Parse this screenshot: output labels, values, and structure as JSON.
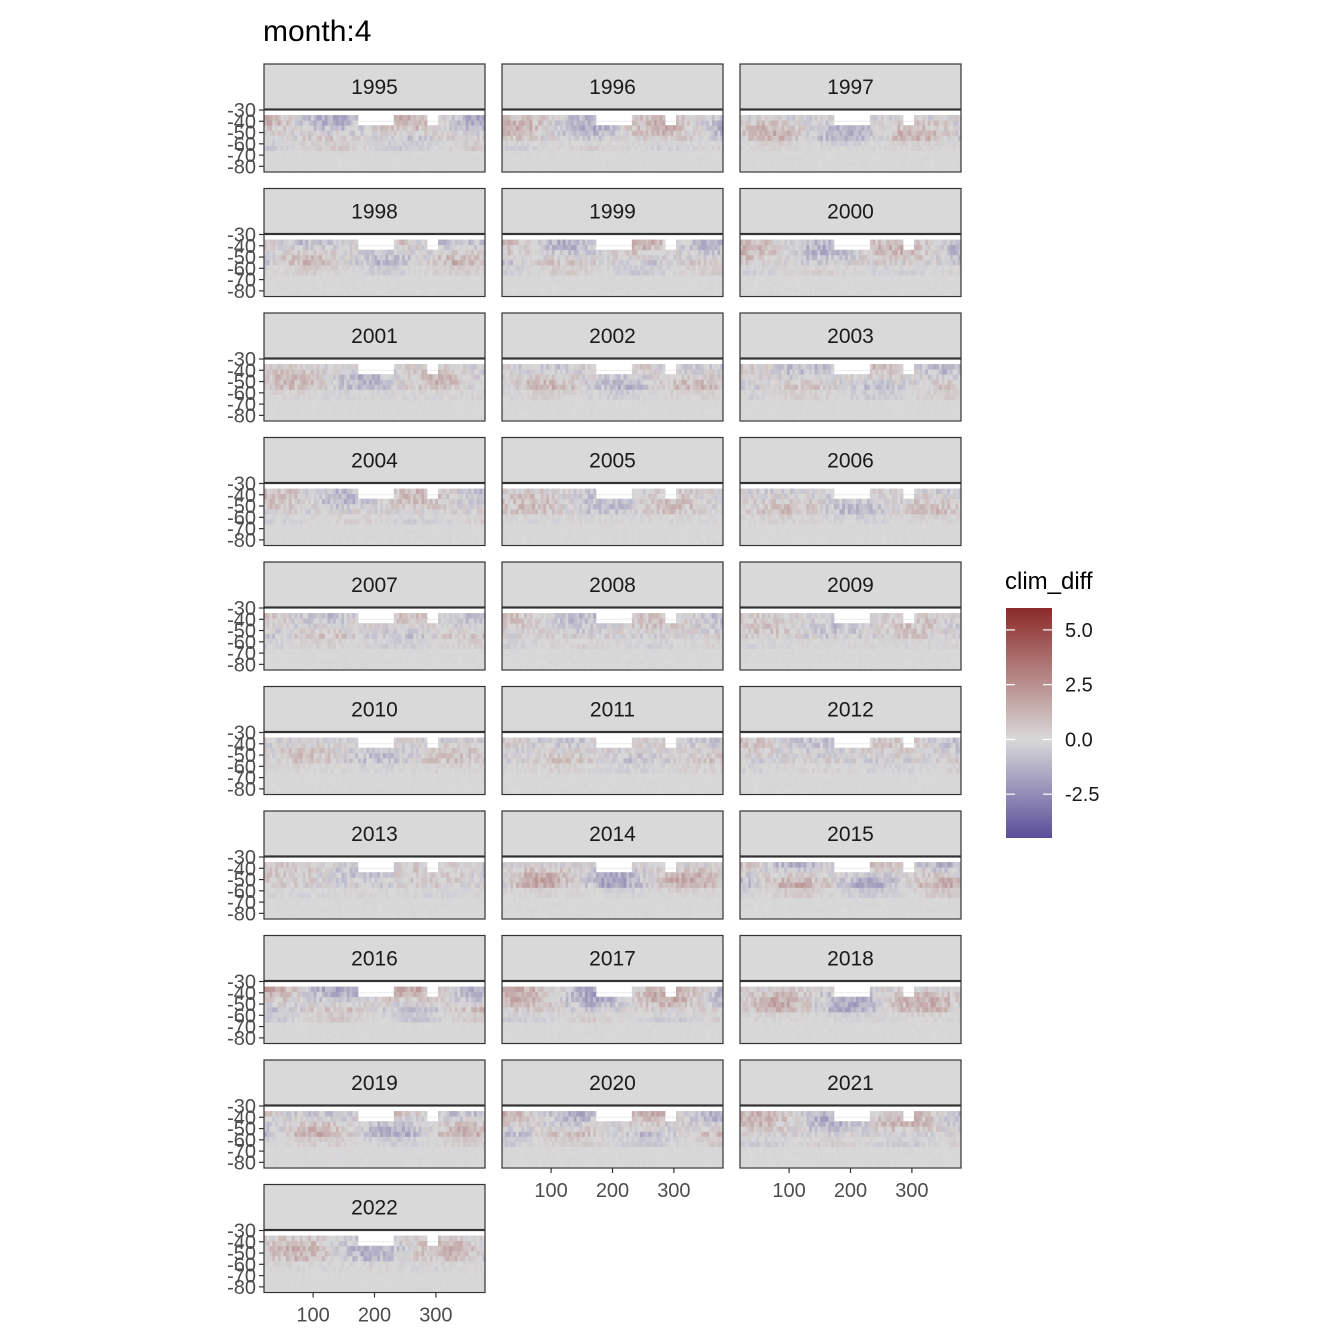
{
  "title": "month:4",
  "chart_data": {
    "type": "heatmap",
    "title": "month:4",
    "facet_label": "year",
    "panels": [
      "1995",
      "1996",
      "1997",
      "1998",
      "1999",
      "2000",
      "2001",
      "2002",
      "2003",
      "2004",
      "2005",
      "2006",
      "2007",
      "2008",
      "2009",
      "2010",
      "2011",
      "2012",
      "2013",
      "2014",
      "2015",
      "2016",
      "2017",
      "2018",
      "2019",
      "2020",
      "2021",
      "2022"
    ],
    "x_ticks": [
      100,
      200,
      300
    ],
    "y_ticks": [
      -30,
      -40,
      -50,
      -60,
      -70,
      -80
    ],
    "x_range": [
      20,
      380
    ],
    "y_range": [
      -85,
      -30
    ],
    "legend": {
      "title": "clim_diff",
      "ticks": [
        5.0,
        2.5,
        0.0,
        -2.5
      ],
      "tick_labels": [
        "5.0",
        "2.5",
        "0.0",
        "-2.5"
      ],
      "range": [
        -4.5,
        6.0
      ],
      "placement": "right",
      "colors": {
        "high": "#8b2a28",
        "mid": "#d9d9d9",
        "low": "#5b4e9a"
      }
    },
    "grid": true,
    "panel_background": "#d3d3d3",
    "strip_background": "#d9d9d9"
  }
}
